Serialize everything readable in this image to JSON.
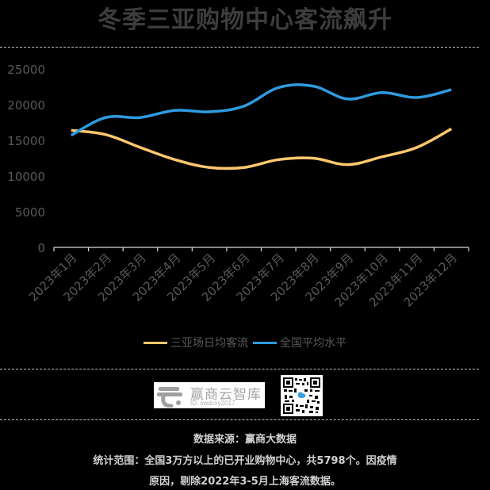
{
  "title": "冬季三亚购物中心客流飙升",
  "legend": [
    {
      "label": "三亚场日均客流",
      "color": "#FFC76E"
    },
    {
      "label": "全国平均水平",
      "color": "#2E9BE0"
    }
  ],
  "logo": {
    "name": "赢商云智库",
    "id": "ID: swdcxy2017"
  },
  "qr_icon": "qr-code",
  "footer": {
    "source": "数据来源：赢商大数据",
    "scope_line1": "统计范围：全国3万方以上的已开业购物中心，共5798个。因疫情",
    "scope_line2": "原因，剔除2022年3-5月上海客流数据。"
  },
  "chart_data": {
    "type": "line",
    "title": "冬季三亚购物中心客流飙升",
    "xlabel": "",
    "ylabel": "",
    "categories": [
      "2023年1月",
      "2023年2月",
      "2023年3月",
      "2023年4月",
      "2023年5月",
      "2023年6月",
      "2023年7月",
      "2023年8月",
      "2023年9月",
      "2023年10月",
      "2023年11月",
      "2023年12月"
    ],
    "series": [
      {
        "name": "三亚场日均客流",
        "color": "#FFC76E",
        "values": [
          16400,
          15800,
          14000,
          12300,
          11200,
          11200,
          12300,
          12500,
          11600,
          12700,
          14000,
          16600
        ]
      },
      {
        "name": "全国平均水平",
        "color": "#2E9BE0",
        "values": [
          15700,
          18200,
          18200,
          19200,
          19000,
          19800,
          22400,
          22600,
          20800,
          21700,
          21000,
          22100
        ]
      }
    ],
    "yticks": [
      0,
      5000,
      10000,
      15000,
      20000,
      25000
    ],
    "ylim": [
      0,
      25000
    ],
    "grid": false,
    "legend_position": "bottom"
  }
}
